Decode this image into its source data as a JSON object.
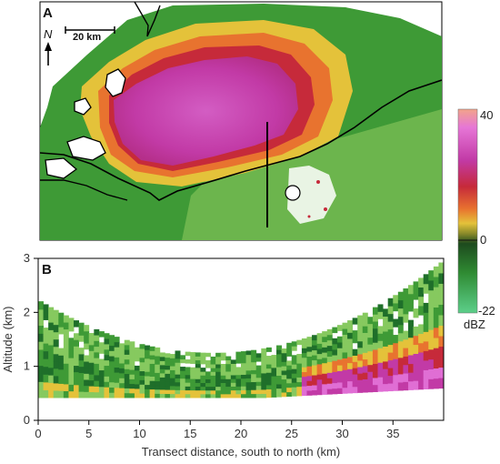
{
  "panel_a": {
    "label": "A",
    "scale_label": "20 km",
    "north_label": "N"
  },
  "panel_b": {
    "label": "B",
    "ylabel": "Altitude (km)",
    "xlabel": "Transect distance, south to north (km)",
    "xticks": [
      "0",
      "5",
      "10",
      "15",
      "20",
      "25",
      "30",
      "35"
    ],
    "yticks": [
      "0",
      "1",
      "2",
      "3"
    ]
  },
  "colorbar": {
    "ticks": [
      "40",
      "0",
      "-22"
    ],
    "unit": "dBZ"
  },
  "colors": {
    "green": "#3e9a36",
    "light_green": "#86c95f",
    "dark_green": "#1f6f2a",
    "yellow": "#e4c23a",
    "orange": "#e8732f",
    "red": "#c62a3a",
    "magenta": "#c23aa6",
    "pink": "#e06ed4"
  },
  "chart_data": {
    "type": "heatmap",
    "xlabel": "Transect distance, south to north (km)",
    "ylabel": "Altitude (km)",
    "xlim": [
      0,
      40
    ],
    "ylim": [
      0,
      3
    ],
    "colorbar_range_dBZ": [
      -22,
      40
    ],
    "x_ticks": [
      0,
      5,
      10,
      15,
      20,
      25,
      30,
      35
    ],
    "y_ticks": [
      0,
      1,
      2,
      3
    ]
  }
}
